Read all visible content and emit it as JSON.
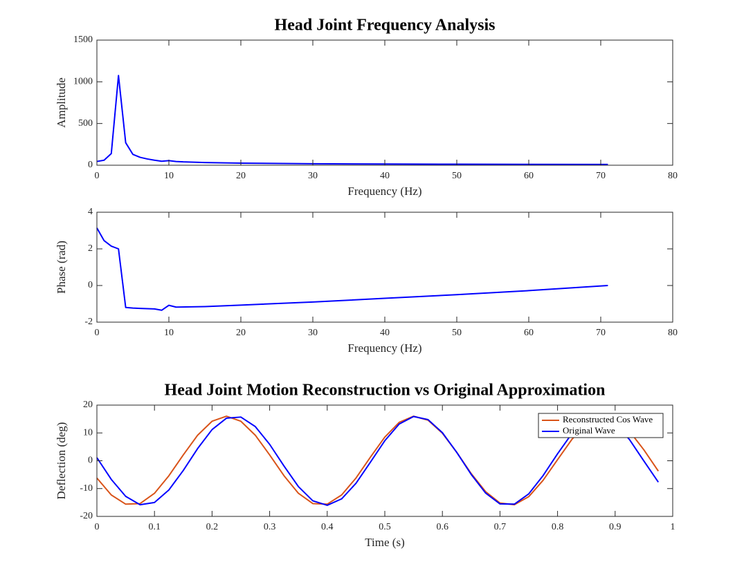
{
  "chart_data": [
    {
      "type": "line",
      "title": "Head Joint Frequency Analysis",
      "xlabel": "Frequency (Hz)",
      "ylabel": "Amplitude",
      "x": [
        0,
        1,
        2,
        3,
        4,
        5,
        6,
        7,
        8,
        9,
        10,
        11,
        12,
        15,
        20,
        30,
        40,
        50,
        60,
        71
      ],
      "values": [
        45,
        60,
        140,
        1075,
        270,
        130,
        95,
        75,
        60,
        48,
        55,
        45,
        40,
        32,
        25,
        18,
        14,
        12,
        10,
        9
      ],
      "color": "#0000ff",
      "xlim": [
        0,
        80
      ],
      "xticks": [
        0,
        10,
        20,
        30,
        40,
        50,
        60,
        70,
        80
      ],
      "ylim": [
        0,
        1500
      ],
      "yticks": [
        0,
        500,
        1000,
        1500
      ]
    },
    {
      "type": "line",
      "xlabel": "Frequency (Hz)",
      "ylabel": "Phase (rad)",
      "x": [
        0,
        1,
        2,
        3,
        4,
        5,
        6,
        8,
        9,
        10,
        11,
        15,
        20,
        30,
        40,
        50,
        60,
        71
      ],
      "values": [
        3.14,
        2.45,
        2.15,
        2.0,
        -1.2,
        -1.23,
        -1.25,
        -1.28,
        -1.35,
        -1.08,
        -1.18,
        -1.15,
        -1.07,
        -0.9,
        -0.7,
        -0.5,
        -0.28,
        0
      ],
      "color": "#0000ff",
      "xlim": [
        0,
        80
      ],
      "xticks": [
        0,
        10,
        20,
        30,
        40,
        50,
        60,
        70,
        80
      ],
      "ylim": [
        -2,
        4
      ],
      "yticks": [
        -2,
        0,
        2,
        4
      ]
    },
    {
      "type": "line",
      "title": "Head Joint Motion Reconstruction vs Original Approximation",
      "xlabel": "Time (s)",
      "ylabel": "Deflection (deg)",
      "x": [
        0,
        0.025,
        0.05,
        0.075,
        0.1,
        0.125,
        0.15,
        0.175,
        0.2,
        0.225,
        0.25,
        0.275,
        0.3,
        0.325,
        0.35,
        0.375,
        0.4,
        0.425,
        0.45,
        0.475,
        0.5,
        0.525,
        0.55,
        0.575,
        0.6,
        0.625,
        0.65,
        0.675,
        0.7,
        0.725,
        0.75,
        0.775,
        0.8,
        0.825,
        0.85,
        0.875,
        0.9,
        0.925,
        0.95,
        0.975
      ],
      "series": [
        {
          "name": "Reconstructed Cos Wave",
          "color": "#d95319",
          "values": [
            -6.2,
            -12.3,
            -15.6,
            -15.4,
            -11.7,
            -5.4,
            2.1,
            9.2,
            14.2,
            16.0,
            14.2,
            9.2,
            2.1,
            -5.4,
            -11.7,
            -15.4,
            -15.6,
            -12.3,
            -6.2,
            1.3,
            8.5,
            13.8,
            16.0,
            14.6,
            9.9,
            3.0,
            -4.6,
            -11.1,
            -15.2,
            -15.8,
            -12.9,
            -7.0,
            0.4,
            7.7,
            13.3,
            15.9,
            14.9,
            10.6,
            3.9,
            -3.7
          ]
        },
        {
          "name": "Original Wave",
          "color": "#0000ff",
          "values": [
            1.1,
            -6.7,
            -12.8,
            -15.8,
            -15.0,
            -10.5,
            -3.5,
            4.4,
            11.2,
            15.3,
            15.7,
            12.3,
            5.9,
            -1.9,
            -9.3,
            -14.4,
            -16.0,
            -13.7,
            -8.1,
            -0.5,
            7.2,
            13.2,
            15.9,
            14.8,
            10.1,
            3.0,
            -4.9,
            -11.6,
            -15.5,
            -15.6,
            -11.9,
            -5.3,
            2.5,
            9.8,
            14.6,
            16.0,
            13.4,
            7.6,
            -0.1,
            -7.7
          ]
        }
      ],
      "legend": "northeast",
      "xlim": [
        0,
        1
      ],
      "xticks": [
        0,
        0.1,
        0.2,
        0.3,
        0.4,
        0.5,
        0.6,
        0.7,
        0.8,
        0.9,
        1
      ],
      "ylim": [
        -20,
        20
      ],
      "yticks": [
        -20,
        -10,
        0,
        10,
        20
      ]
    }
  ]
}
